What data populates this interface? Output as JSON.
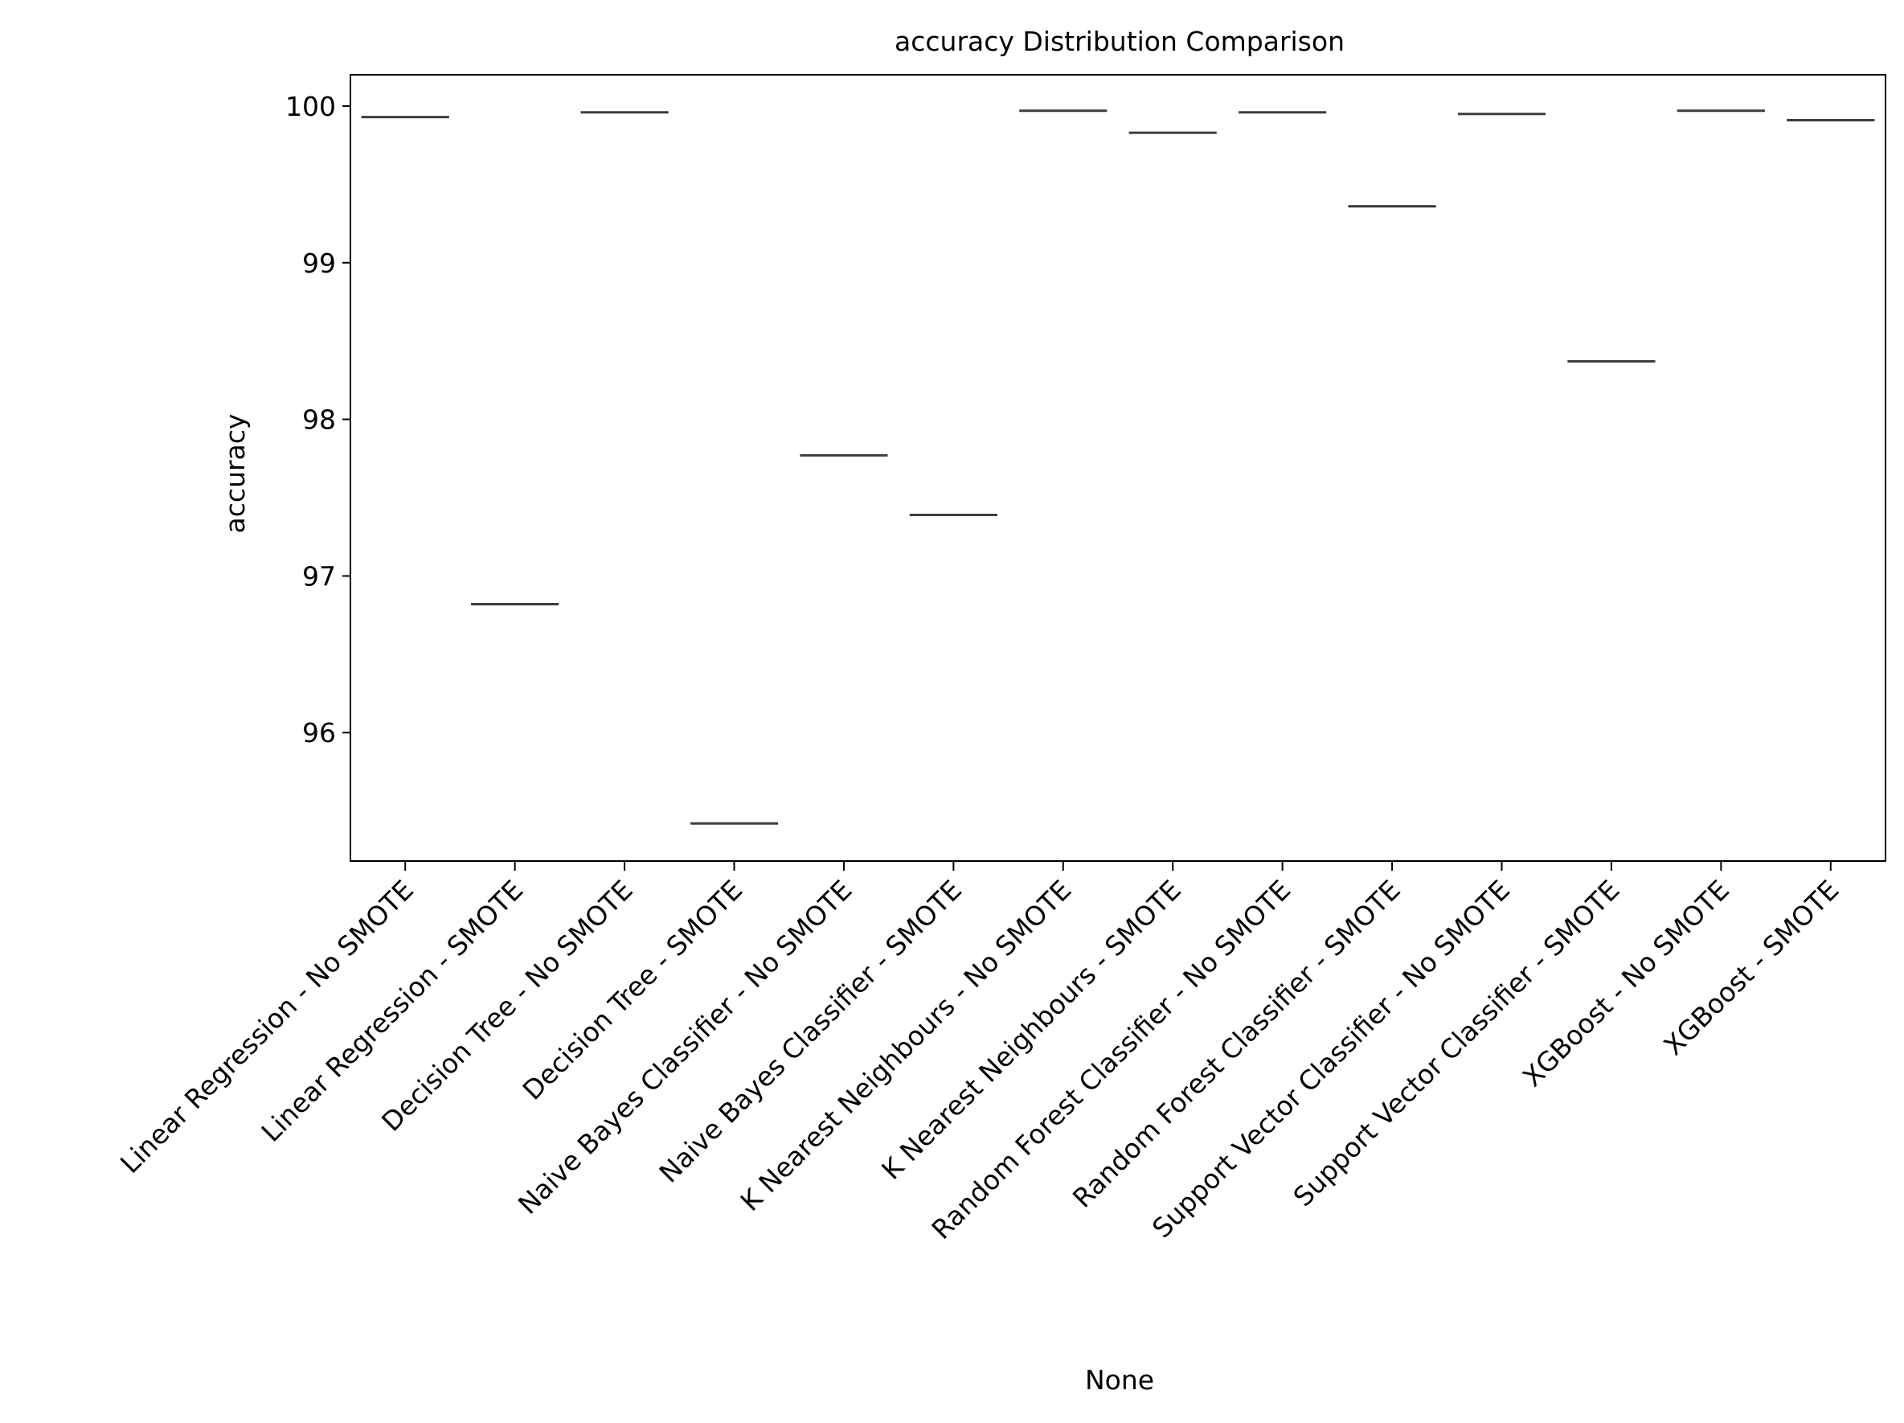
{
  "chart_data": {
    "type": "box",
    "title": "accuracy Distribution Comparison",
    "xlabel": "None",
    "ylabel": "accuracy",
    "categories": [
      "Linear Regression - No SMOTE",
      "Linear Regression - SMOTE",
      "Decision Tree - No SMOTE",
      "Decision Tree - SMOTE",
      "Naive Bayes Classifier - No SMOTE",
      "Naive Bayes Classifier - SMOTE",
      "K Nearest Neighbours - No SMOTE",
      "K Nearest Neighbours - SMOTE",
      "Random Forest Classifier - No SMOTE",
      "Random Forest Classifier - SMOTE",
      "Support Vector Classifier - No SMOTE",
      "Support Vector Classifier - SMOTE",
      "XGBoost - No SMOTE",
      "XGBoost - SMOTE"
    ],
    "values": [
      99.93,
      96.82,
      99.96,
      95.42,
      97.77,
      97.39,
      99.97,
      99.83,
      99.96,
      99.36,
      99.95,
      98.37,
      99.97,
      99.91
    ],
    "ylim": [
      95.18,
      100.2
    ],
    "yticks": [
      96,
      97,
      98,
      99,
      100
    ],
    "grid": false,
    "line_color": "#3d3d3d"
  }
}
